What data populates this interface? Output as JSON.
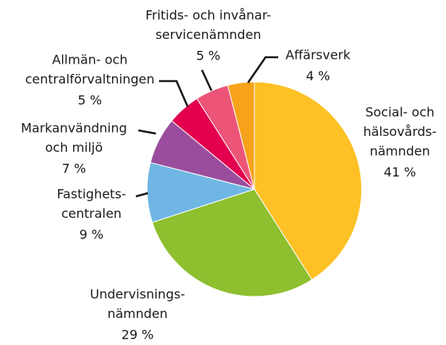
{
  "chart_data": {
    "type": "pie",
    "categories": [
      [
        "Social- och",
        "hälsovårds-",
        "nämnden"
      ],
      [
        "Undervisnings-",
        "nämnden"
      ],
      [
        "Fastighets-",
        "centralen"
      ],
      [
        "Markanvändning",
        "och miljö"
      ],
      [
        "Allmän- och",
        "centralförvaltningen"
      ],
      [
        "Fritids- och invånar-",
        "servicenämnden"
      ],
      [
        "Affärsverk"
      ]
    ],
    "values": [
      41,
      29,
      9,
      7,
      5,
      5,
      4
    ],
    "value_labels": [
      "41 %",
      "29 %",
      "9 %",
      "7 %",
      "5 %",
      "5 %",
      "4 %"
    ],
    "colors": [
      "#fdc125",
      "#8dbf2e",
      "#6fb6e4",
      "#9a4d9c",
      "#e2004f",
      "#ec5577",
      "#f7a21b"
    ]
  }
}
